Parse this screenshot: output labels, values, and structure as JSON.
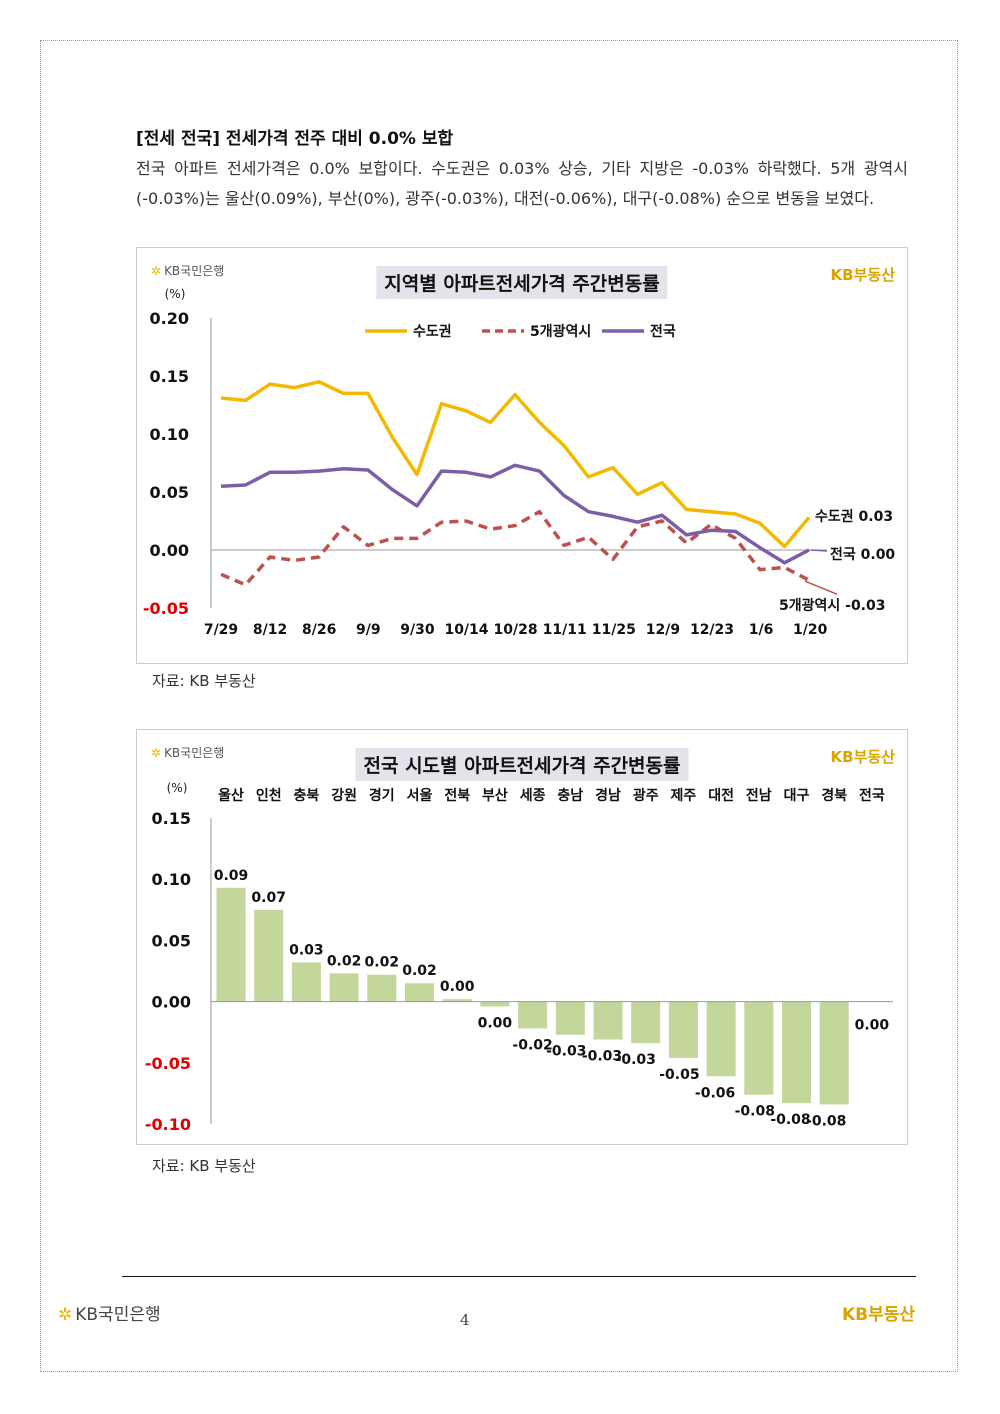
{
  "heading": "[전세 전국] 전세가격 전주 대비 0.0% 보합",
  "paragraph": "전국 아파트 전세가격은 0.0% 보합이다. 수도권은 0.03% 상승, 기타 지방은 -0.03% 하락했다. 5개 광역시(-0.03%)는 울산(0.09%), 부산(0%), 광주(-0.03%), 대전(-0.06%), 대구(-0.08%) 순으로 변동을 보였다.",
  "source_label": "자료: KB 부동산",
  "brand": {
    "bank": "KB국민은행",
    "bank_star": "✲",
    "realestate": "KB부동산"
  },
  "footer": {
    "bank": "KB국민은행",
    "page": "4",
    "realestate": "KB부동산"
  },
  "colors": {
    "capital": "#f2b900",
    "metro": "#c0504d",
    "national": "#7b5ea7",
    "bar": "#c3d69b",
    "negative": "#e00000"
  },
  "chart_data": [
    {
      "type": "line",
      "title": "지역별 아파트전세가격 주간변동률",
      "ylabel": "(%)",
      "ylim": [
        -0.05,
        0.2
      ],
      "yticks": [
        "0.20",
        "0.15",
        "0.10",
        "0.05",
        "0.00",
        "-0.05"
      ],
      "x_tick_labels": [
        "7/29",
        "8/12",
        "8/26",
        "9/9",
        "9/30",
        "10/14",
        "10/28",
        "11/11",
        "11/25",
        "12/9",
        "12/23",
        "1/6",
        "1/20"
      ],
      "series": [
        {
          "name": "수도권",
          "end_label": "수도권 0.03",
          "values": [
            0.131,
            0.129,
            0.143,
            0.14,
            0.145,
            0.135,
            0.135,
            0.097,
            0.065,
            0.126,
            0.12,
            0.11,
            0.134,
            0.11,
            0.09,
            0.063,
            0.071,
            0.048,
            0.058,
            0.035,
            0.033,
            0.031,
            0.023,
            0.003,
            0.028
          ]
        },
        {
          "name": "5개광역시",
          "end_label": "5개광역시 -0.03",
          "values": [
            -0.021,
            -0.03,
            -0.006,
            -0.009,
            -0.006,
            0.02,
            0.004,
            0.01,
            0.01,
            0.024,
            0.025,
            0.018,
            0.021,
            0.033,
            0.004,
            0.011,
            -0.008,
            0.02,
            0.025,
            0.006,
            0.022,
            0.01,
            -0.017,
            -0.015,
            -0.026
          ]
        },
        {
          "name": "전국",
          "end_label": "전국 0.00",
          "values": [
            0.055,
            0.056,
            0.067,
            0.067,
            0.068,
            0.07,
            0.069,
            0.052,
            0.038,
            0.068,
            0.067,
            0.063,
            0.073,
            0.068,
            0.047,
            0.033,
            0.029,
            0.024,
            0.03,
            0.013,
            0.017,
            0.016,
            0.002,
            -0.011,
            0.0
          ]
        }
      ]
    },
    {
      "type": "bar",
      "title": "전국 시도별 아파트전세가격 주간변동률",
      "ylabel": "(%)",
      "ylim": [
        -0.1,
        0.15
      ],
      "yticks": [
        "0.15",
        "0.10",
        "0.05",
        "0.00",
        "-0.05",
        "-0.10"
      ],
      "categories": [
        "울산",
        "인천",
        "충북",
        "강원",
        "경기",
        "서울",
        "전북",
        "부산",
        "세종",
        "충남",
        "경남",
        "광주",
        "제주",
        "대전",
        "전남",
        "대구",
        "경북",
        "전국"
      ],
      "values": [
        0.093,
        0.075,
        0.032,
        0.023,
        0.022,
        0.015,
        0.002,
        -0.004,
        -0.022,
        -0.027,
        -0.031,
        -0.034,
        -0.046,
        -0.061,
        -0.076,
        -0.083,
        -0.084,
        0.0
      ],
      "data_labels": [
        "0.09",
        "0.07",
        "0.03",
        "0.02",
        "0.02",
        "0.02",
        "0.00",
        "0.00",
        "-0.02",
        "-0.03",
        "-0.03",
        "-0.03",
        "-0.05",
        "-0.06",
        "-0.08",
        "-0.08",
        "-0.08",
        "0.00"
      ]
    }
  ]
}
